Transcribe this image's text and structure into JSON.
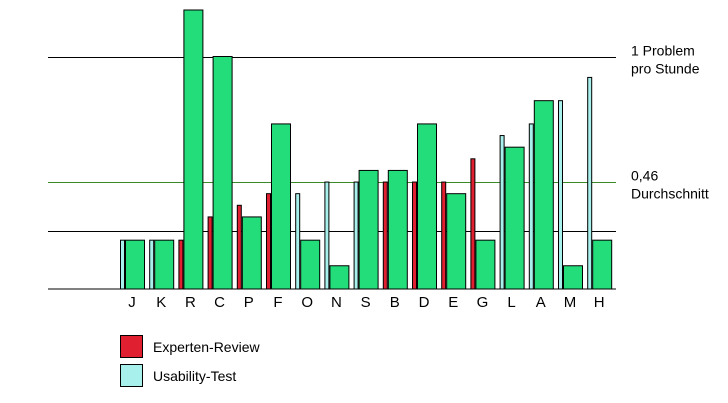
{
  "chart_data": {
    "type": "bar",
    "categories": [
      "J",
      "K",
      "R",
      "C",
      "P",
      "F",
      "O",
      "N",
      "S",
      "B",
      "D",
      "E",
      "G",
      "L",
      "A",
      "M",
      "H"
    ],
    "series": [
      {
        "name": "Experten-Review",
        "color": "#e02030",
        "values": [
          0,
          0,
          0.21,
          0.31,
          0.36,
          0.41,
          0,
          0,
          0,
          0.46,
          0.46,
          0.46,
          0.56,
          0,
          0,
          0,
          0
        ]
      },
      {
        "name": "Usability-Test",
        "color": "#a8f0ec",
        "values": [
          0.21,
          0.21,
          0,
          0,
          0,
          0,
          0.41,
          0.46,
          0.46,
          0,
          0,
          0,
          0,
          0.66,
          0.71,
          0.81,
          0.91
        ]
      },
      {
        "name": "",
        "color": "#22dd7a",
        "values": [
          0.21,
          0.21,
          1.2,
          1.0,
          0.31,
          0.71,
          0.21,
          0.1,
          0.51,
          0.51,
          0.71,
          0.41,
          0.21,
          0.61,
          0.81,
          0.1,
          0.21
        ]
      }
    ],
    "ylim": [
      0,
      1.2
    ],
    "reference_lines": [
      {
        "value": 1.0,
        "label_lines": [
          "1 Problem",
          "pro Stunde"
        ],
        "color": "#000000"
      },
      {
        "value": 0.46,
        "label_lines": [
          "0,46",
          "Durchschnitt"
        ],
        "color": "#3a8a2a"
      },
      {
        "value": 0.25,
        "label_lines": [],
        "color": "#000000"
      }
    ],
    "legend": {
      "position": "bottom-left",
      "entries": [
        {
          "label": "Experten-Review",
          "color": "#e02030"
        },
        {
          "label": "Usability-Test",
          "color": "#a8f0ec"
        }
      ]
    },
    "title": "",
    "xlabel": "",
    "ylabel": ""
  }
}
